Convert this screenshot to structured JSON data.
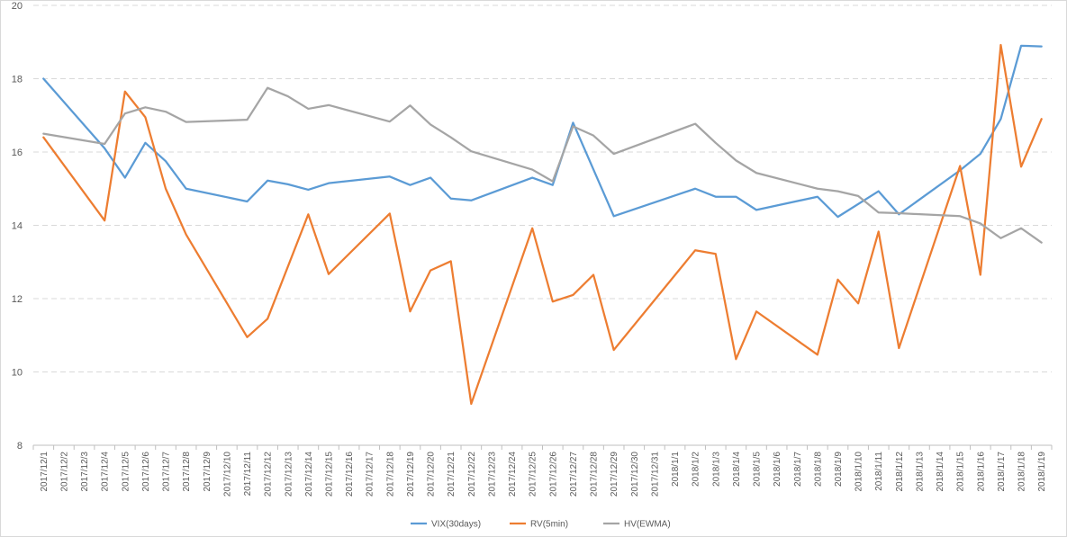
{
  "chart_data": {
    "type": "line",
    "title": "",
    "xlabel": "",
    "ylabel": "",
    "ylim": [
      8,
      20
    ],
    "yticks": [
      8,
      10,
      12,
      14,
      16,
      18,
      20
    ],
    "grid": "horizontal dashed",
    "legend_position": "bottom",
    "categories": [
      "2017/12/1",
      "2017/12/2",
      "2017/12/3",
      "2017/12/4",
      "2017/12/5",
      "2017/12/6",
      "2017/12/7",
      "2017/12/8",
      "2017/12/9",
      "2017/12/10",
      "2017/12/11",
      "2017/12/12",
      "2017/12/13",
      "2017/12/14",
      "2017/12/15",
      "2017/12/16",
      "2017/12/17",
      "2017/12/18",
      "2017/12/19",
      "2017/12/20",
      "2017/12/21",
      "2017/12/22",
      "2017/12/23",
      "2017/12/24",
      "2017/12/25",
      "2017/12/26",
      "2017/12/27",
      "2017/12/28",
      "2017/12/29",
      "2017/12/30",
      "2017/12/31",
      "2018/1/1",
      "2018/1/2",
      "2018/1/3",
      "2018/1/4",
      "2018/1/5",
      "2018/1/6",
      "2018/1/7",
      "2018/1/8",
      "2018/1/9",
      "2018/1/10",
      "2018/1/11",
      "2018/1/12",
      "2018/1/13",
      "2018/1/14",
      "2018/1/15",
      "2018/1/16",
      "2018/1/17",
      "2018/1/18",
      "2018/1/19"
    ],
    "series": [
      {
        "name": "VIX(30days)",
        "color": "#5b9bd5",
        "values": [
          18.0,
          null,
          null,
          16.1,
          15.3,
          16.25,
          15.75,
          15.0,
          null,
          null,
          14.65,
          15.22,
          15.12,
          14.97,
          15.15,
          null,
          null,
          15.33,
          15.1,
          15.3,
          14.73,
          14.68,
          null,
          null,
          15.3,
          15.1,
          16.8,
          null,
          14.25,
          null,
          null,
          null,
          15.0,
          14.78,
          14.78,
          14.42,
          null,
          null,
          14.78,
          14.23,
          null,
          14.93,
          14.3,
          null,
          null,
          15.5,
          15.95,
          16.9,
          18.9,
          18.88
        ]
      },
      {
        "name": "RV(5min)",
        "color": "#ed7d31",
        "values": [
          16.4,
          null,
          null,
          14.13,
          17.65,
          16.95,
          15.0,
          13.75,
          null,
          null,
          10.95,
          11.45,
          null,
          14.3,
          12.67,
          null,
          null,
          14.32,
          11.65,
          12.77,
          13.02,
          9.13,
          null,
          null,
          13.92,
          11.92,
          12.1,
          12.65,
          10.6,
          null,
          null,
          null,
          13.32,
          13.22,
          10.35,
          11.65,
          null,
          null,
          10.47,
          12.52,
          11.87,
          13.83,
          10.65,
          null,
          null,
          15.62,
          12.65,
          18.92,
          15.6,
          16.9
        ]
      },
      {
        "name": "HV(EWMA)",
        "color": "#a5a5a5",
        "values": [
          16.5,
          null,
          null,
          16.22,
          17.05,
          17.22,
          17.1,
          16.82,
          null,
          null,
          16.88,
          17.75,
          17.52,
          17.18,
          17.28,
          null,
          null,
          16.83,
          17.27,
          16.75,
          16.4,
          16.02,
          null,
          null,
          15.52,
          15.2,
          16.7,
          16.45,
          15.95,
          null,
          null,
          null,
          16.77,
          16.25,
          15.77,
          15.43,
          null,
          null,
          15.0,
          14.93,
          14.8,
          14.35,
          14.33,
          null,
          null,
          14.25,
          14.05,
          13.65,
          13.92,
          13.53
        ]
      }
    ]
  }
}
